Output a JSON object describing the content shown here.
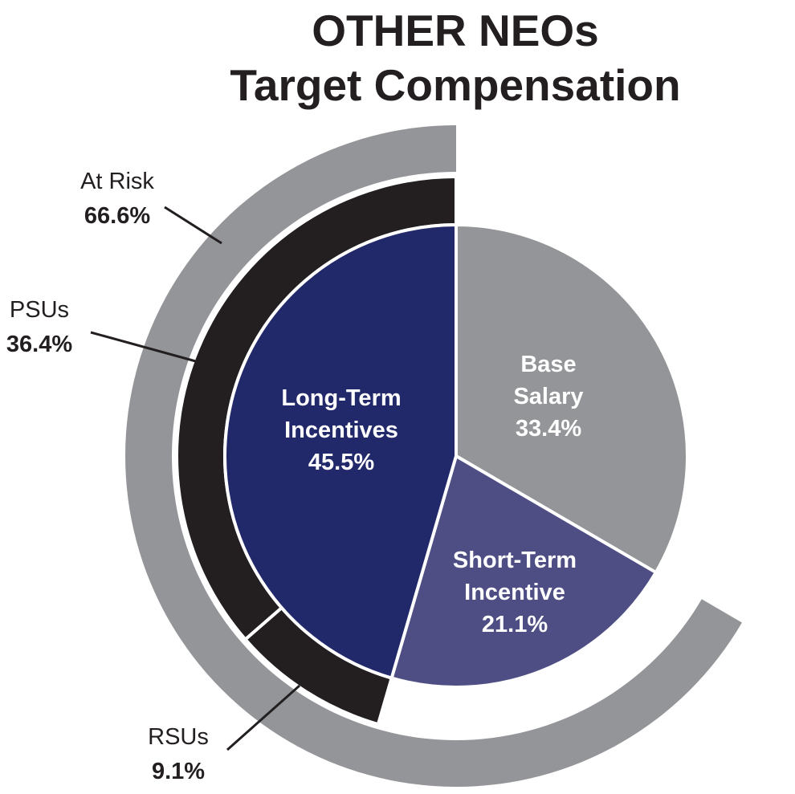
{
  "title": {
    "line1": "OTHER NEOs",
    "line2": "Target Compensation"
  },
  "chart_data": {
    "type": "pie",
    "title": "OTHER NEOs Target Compensation",
    "slices": [
      {
        "name": "Base Salary",
        "label_lines": [
          "Base",
          "Salary"
        ],
        "value": 33.4,
        "display": "33.4%",
        "color": "#939598"
      },
      {
        "name": "Short-Term Incentive",
        "label_lines": [
          "Short-Term",
          "Incentive"
        ],
        "value": 21.1,
        "display": "21.1%",
        "color": "#4e4e85"
      },
      {
        "name": "Long-Term Incentives",
        "label_lines": [
          "Long-Term",
          "Incentives"
        ],
        "value": 45.5,
        "display": "45.5%",
        "color": "#22296a"
      }
    ],
    "ring_ltip": [
      {
        "name": "PSUs",
        "value": 36.4,
        "display": "36.4%",
        "color": "#231f20"
      },
      {
        "name": "RSUs",
        "value": 9.1,
        "display": "9.1%",
        "color": "#231f20"
      }
    ],
    "ring_at_risk": {
      "name": "At Risk",
      "value": 66.6,
      "display": "66.6%",
      "color": "#939598"
    }
  }
}
